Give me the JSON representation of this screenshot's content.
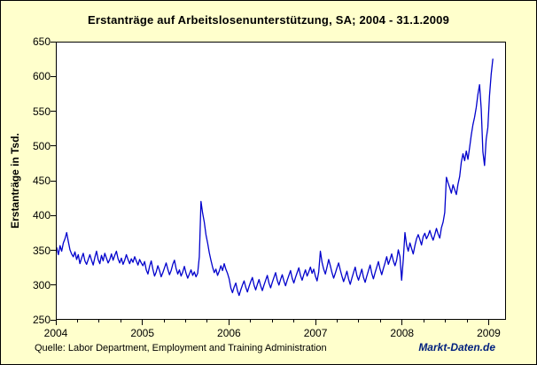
{
  "title": "Erstanträge auf Arbeitslosenunterstützung, SA;  2004 - 31.1.2009",
  "footer": {
    "source": "Quelle: Labor Department, Employment and Training Administration",
    "watermark": "Markt-Daten.de"
  },
  "colors": {
    "background": "#FFFFCC",
    "plot_background": "#FFFFFF",
    "line": "#0000CC",
    "axis": "#000000",
    "watermark": "#00207E"
  },
  "chart_data": {
    "type": "line",
    "title": "Erstanträge auf Arbeitslosenunterstützung, SA;  2004 - 31.1.2009",
    "xlabel": "",
    "ylabel": "Erstanträge in Tsd.",
    "xlim": [
      2004,
      2009.2
    ],
    "ylim": [
      250,
      650
    ],
    "xticks": [
      2004,
      2005,
      2006,
      2007,
      2008,
      2009
    ],
    "yticks": [
      250,
      300,
      350,
      400,
      450,
      500,
      550,
      600,
      650
    ],
    "grid": false,
    "legend": false,
    "x_start": 2004,
    "points_per_year": 52,
    "x_unit": "weekly",
    "series": [
      {
        "name": "Erstanträge auf Arbeitslosenunterstützung (SA), in Tsd.",
        "values": [
          353,
          343,
          356,
          348,
          360,
          366,
          375,
          362,
          350,
          344,
          340,
          347,
          336,
          343,
          330,
          338,
          345,
          334,
          329,
          336,
          343,
          335,
          328,
          339,
          348,
          336,
          330,
          342,
          334,
          345,
          338,
          331,
          336,
          344,
          335,
          342,
          348,
          337,
          331,
          338,
          329,
          335,
          343,
          336,
          330,
          337,
          332,
          340,
          334,
          328,
          336,
          331,
          327,
          333,
          321,
          315,
          326,
          334,
          322,
          312,
          318,
          327,
          320,
          311,
          317,
          324,
          331,
          322,
          314,
          320,
          329,
          335,
          323,
          315,
          321,
          312,
          318,
          326,
          316,
          309,
          315,
          321,
          313,
          318,
          311,
          316,
          340,
          420,
          403,
          390,
          372,
          360,
          346,
          335,
          325,
          317,
          322,
          313,
          319,
          327,
          320,
          330,
          322,
          316,
          308,
          295,
          288,
          296,
          302,
          291,
          284,
          292,
          299,
          305,
          296,
          289,
          297,
          304,
          310,
          299,
          292,
          300,
          307,
          298,
          291,
          299,
          306,
          313,
          302,
          295,
          303,
          310,
          317,
          306,
          299,
          307,
          314,
          305,
          298,
          306,
          313,
          320,
          309,
          302,
          310,
          317,
          324,
          313,
          306,
          314,
          321,
          312,
          318,
          325,
          316,
          322,
          312,
          305,
          318,
          348,
          332,
          322,
          315,
          325,
          336,
          327,
          317,
          309,
          316,
          324,
          331,
          321,
          312,
          304,
          311,
          319,
          308,
          300,
          309,
          317,
          325,
          313,
          306,
          314,
          322,
          310,
          303,
          312,
          320,
          328,
          316,
          308,
          317,
          325,
          333,
          322,
          314,
          323,
          331,
          340,
          329,
          336,
          344,
          334,
          327,
          335,
          350,
          340,
          306,
          336,
          375,
          357,
          348,
          360,
          352,
          344,
          356,
          366,
          372,
          365,
          357,
          369,
          374,
          366,
          371,
          378,
          370,
          364,
          372,
          381,
          373,
          367,
          382,
          390,
          404,
          455,
          447,
          440,
          432,
          444,
          437,
          430,
          445,
          456,
          477,
          489,
          479,
          493,
          481,
          498,
          516,
          531,
          542,
          556,
          575,
          589,
          554,
          492,
          472,
          510,
          527,
          573,
          604,
          626
        ]
      }
    ]
  }
}
